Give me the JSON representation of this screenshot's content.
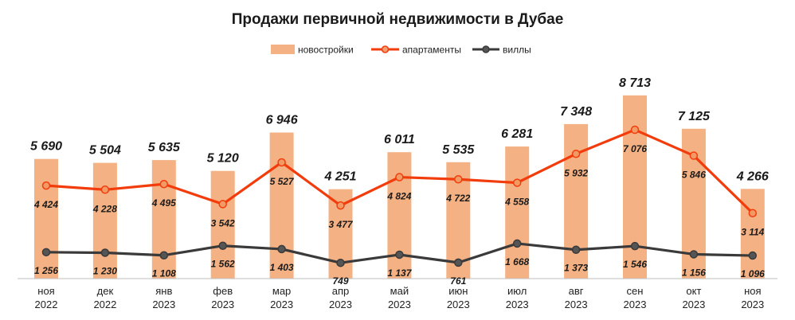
{
  "chart_data": {
    "type": "bar",
    "title": "Продажи первичной недвижимости в Дубае",
    "categories": [
      [
        "ноя",
        "2022"
      ],
      [
        "дек",
        "2022"
      ],
      [
        "янв",
        "2023"
      ],
      [
        "фев",
        "2023"
      ],
      [
        "мар",
        "2023"
      ],
      [
        "апр",
        "2023"
      ],
      [
        "май",
        "2023"
      ],
      [
        "июн",
        "2023"
      ],
      [
        "июл",
        "2023"
      ],
      [
        "авг",
        "2023"
      ],
      [
        "сен",
        "2023"
      ],
      [
        "окт",
        "2023"
      ],
      [
        "ноя",
        "2023"
      ]
    ],
    "series": [
      {
        "name": "новостройки",
        "type": "bar",
        "color": "#F4B183",
        "values": [
          5690,
          5504,
          5635,
          5120,
          6946,
          4251,
          6011,
          5535,
          6281,
          7348,
          8713,
          7125,
          4266
        ],
        "labels": [
          "5 690",
          "5 504",
          "5 635",
          "5 120",
          "6 946",
          "4 251",
          "6 011",
          "5 535",
          "6 281",
          "7 348",
          "8 713",
          "7 125",
          "4 266"
        ]
      },
      {
        "name": "апартаменты",
        "type": "line",
        "color": "#F23C0C",
        "values": [
          4424,
          4228,
          4495,
          3542,
          5527,
          3477,
          4824,
          4722,
          4558,
          5932,
          7076,
          5846,
          3114
        ],
        "labels": [
          "4 424",
          "4 228",
          "4 495",
          "3 542",
          "5 527",
          "3 477",
          "4 824",
          "4 722",
          "4 558",
          "5 932",
          "7 076",
          "5 846",
          "3 114"
        ]
      },
      {
        "name": "виллы",
        "type": "line",
        "color": "#3A3A3A",
        "values": [
          1256,
          1230,
          1108,
          1562,
          1403,
          749,
          1137,
          761,
          1668,
          1373,
          1546,
          1156,
          1096
        ],
        "labels": [
          "1 256",
          "1 230",
          "1 108",
          "1 562",
          "1 403",
          "749",
          "1 137",
          "761",
          "1 668",
          "1 373",
          "1 546",
          "1 156",
          "1 096"
        ]
      }
    ],
    "ylim": [
      0,
      10000
    ],
    "legend_position": "top",
    "grid": false
  }
}
